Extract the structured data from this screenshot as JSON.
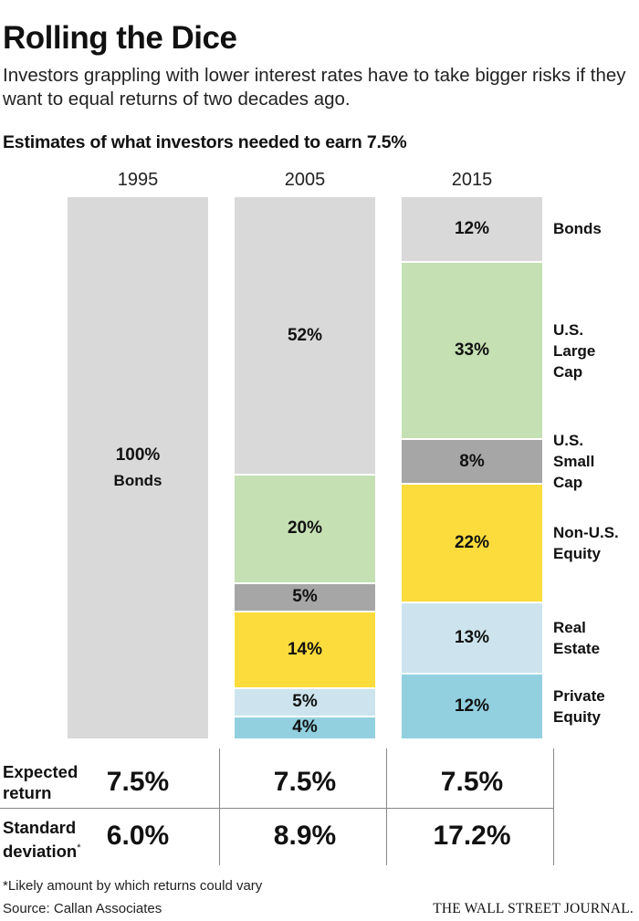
{
  "header": {
    "title": "Rolling the Dice",
    "subtitle": "Investors grappling with lower interest rates have to take bigger risks if they want to equal returns of two decades ago.",
    "chart_heading": "Estimates of what investors needed to earn 7.5%"
  },
  "colors": {
    "Bonds": "#d9d9d9",
    "U.S. Large Cap": "#c5e0b3",
    "U.S. Small Cap": "#a6a6a6",
    "Non-U.S. Equity": "#fcdc3c",
    "Real Estate": "#cde4ee",
    "Private Equity": "#92d0e0"
  },
  "chart_data": {
    "type": "bar",
    "stacked": true,
    "categories": [
      "1995",
      "2005",
      "2015"
    ],
    "series": [
      {
        "name": "Bonds",
        "values": [
          100,
          52,
          12
        ]
      },
      {
        "name": "U.S. Large Cap",
        "values": [
          0,
          20,
          33
        ]
      },
      {
        "name": "U.S. Small Cap",
        "values": [
          0,
          5,
          8
        ]
      },
      {
        "name": "Non-U.S. Equity",
        "values": [
          0,
          14,
          22
        ]
      },
      {
        "name": "Real Estate",
        "values": [
          0,
          5,
          13
        ]
      },
      {
        "name": "Private Equity",
        "values": [
          0,
          4,
          12
        ]
      }
    ],
    "data_labels": [
      [
        "100%",
        "",
        "",
        "",
        "",
        ""
      ],
      [
        "52%",
        "20%",
        "5%",
        "14%",
        "5%",
        "4%"
      ],
      [
        "12%",
        "33%",
        "8%",
        "22%",
        "13%",
        "12%"
      ]
    ],
    "bar_1995_sublabel": "Bonds",
    "category_labels": [
      {
        "series": "Bonds",
        "lines": [
          "Bonds"
        ]
      },
      {
        "series": "U.S. Large Cap",
        "lines": [
          "U.S.",
          "Large",
          "Cap"
        ]
      },
      {
        "series": "U.S. Small Cap",
        "lines": [
          "U.S.",
          "Small",
          "Cap"
        ]
      },
      {
        "series": "Non-U.S. Equity",
        "lines": [
          "Non-U.S.",
          "Equity"
        ]
      },
      {
        "series": "Real Estate",
        "lines": [
          "Real",
          "Estate"
        ]
      },
      {
        "series": "Private Equity",
        "lines": [
          "Private",
          "Equity"
        ]
      }
    ]
  },
  "stats": {
    "expected_return": {
      "label_lines": [
        "Expected",
        "return"
      ],
      "values": [
        "7.5%",
        "7.5%",
        "7.5%"
      ]
    },
    "standard_deviation": {
      "label_lines": [
        "Standard",
        "deviation"
      ],
      "marker": "*",
      "values": [
        "6.0%",
        "8.9%",
        "17.2%"
      ]
    }
  },
  "footer": {
    "footnote": "*Likely amount by which returns could vary",
    "source": "Source: Callan Associates",
    "publisher": "THE WALL STREET JOURNAL."
  }
}
